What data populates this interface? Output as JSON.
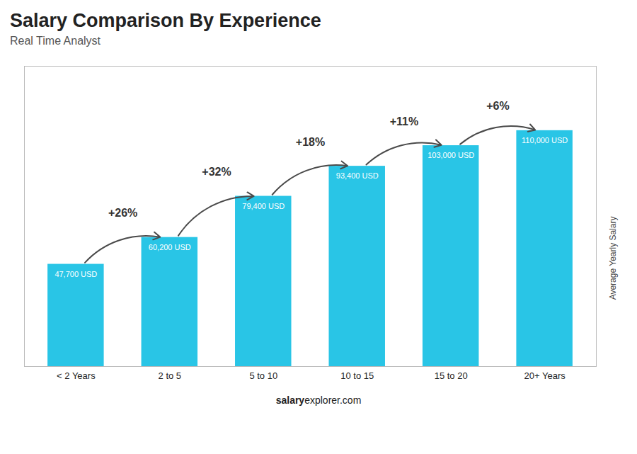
{
  "chart_data": {
    "type": "bar",
    "title": "Salary Comparison By Experience",
    "subtitle": "Real Time Analyst",
    "ylabel": "Average Yearly Salary",
    "categories": [
      "< 2 Years",
      "2 to 5",
      "5 to 10",
      "10 to 15",
      "15 to 20",
      "20+ Years"
    ],
    "values": [
      47700,
      60200,
      79400,
      93400,
      103000,
      110000
    ],
    "value_labels": [
      "47,700 USD",
      "60,200 USD",
      "79,400 USD",
      "93,400 USD",
      "103,000 USD",
      "110,000 USD"
    ],
    "data_labels": true,
    "color": "#29C5E6",
    "ylim": [
      0,
      140000
    ],
    "tick_labels": "x",
    "annotations": [
      "+26%",
      "+32%",
      "+18%",
      "+11%",
      "+6%"
    ],
    "caption": [
      "salary",
      "explorer.com"
    ]
  }
}
